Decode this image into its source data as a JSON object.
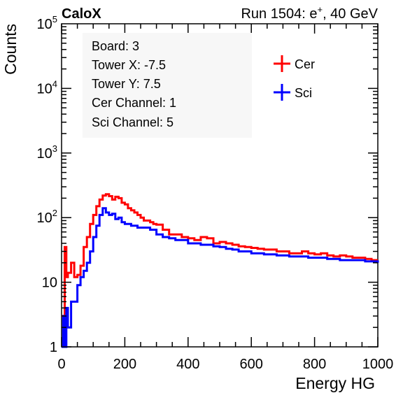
{
  "header": {
    "experiment": "CaloX",
    "run_label": "Run 1504: e",
    "run_superscript": "+",
    "run_energy": ", 40 GeV"
  },
  "info_box": {
    "lines": [
      "Board: 3",
      "Tower X: -7.5",
      "Tower Y: 7.5",
      "Cer Channel: 1",
      "Sci Channel: 5"
    ]
  },
  "chart_data": {
    "type": "line",
    "xlabel": "Energy HG",
    "ylabel": "Counts",
    "xlim": [
      0,
      1000
    ],
    "ylim": [
      1,
      100000
    ],
    "log_y": true,
    "grid": false,
    "legend_position": "top-right",
    "x_ticks": [
      {
        "v": 0,
        "label": "0"
      },
      {
        "v": 200,
        "label": "200"
      },
      {
        "v": 400,
        "label": "400"
      },
      {
        "v": 600,
        "label": "600"
      },
      {
        "v": 800,
        "label": "800"
      },
      {
        "v": 1000,
        "label": "1000"
      }
    ],
    "y_ticks": [
      {
        "v": 1,
        "base": "1",
        "exp": ""
      },
      {
        "v": 10,
        "base": "10",
        "exp": ""
      },
      {
        "v": 100,
        "base": "10",
        "exp": "2"
      },
      {
        "v": 1000,
        "base": "10",
        "exp": "3"
      },
      {
        "v": 10000,
        "base": "10",
        "exp": "4"
      },
      {
        "v": 100000,
        "base": "10",
        "exp": "5"
      }
    ],
    "series": [
      {
        "name": "Cer",
        "color": "#ff0000",
        "points": [
          [
            0,
            3
          ],
          [
            10,
            35
          ],
          [
            15,
            12
          ],
          [
            20,
            14
          ],
          [
            30,
            20
          ],
          [
            40,
            12
          ],
          [
            50,
            13
          ],
          [
            60,
            18
          ],
          [
            70,
            35
          ],
          [
            80,
            50
          ],
          [
            90,
            80
          ],
          [
            100,
            110
          ],
          [
            110,
            150
          ],
          [
            120,
            190
          ],
          [
            130,
            220
          ],
          [
            140,
            230
          ],
          [
            150,
            215
          ],
          [
            160,
            190
          ],
          [
            170,
            210
          ],
          [
            180,
            200
          ],
          [
            190,
            170
          ],
          [
            200,
            160
          ],
          [
            210,
            140
          ],
          [
            220,
            130
          ],
          [
            230,
            120
          ],
          [
            240,
            110
          ],
          [
            250,
            100
          ],
          [
            260,
            90
          ],
          [
            270,
            90
          ],
          [
            280,
            85
          ],
          [
            290,
            80
          ],
          [
            300,
            78
          ],
          [
            320,
            65
          ],
          [
            340,
            55
          ],
          [
            360,
            55
          ],
          [
            380,
            50
          ],
          [
            400,
            48
          ],
          [
            420,
            45
          ],
          [
            440,
            50
          ],
          [
            460,
            48
          ],
          [
            480,
            40
          ],
          [
            500,
            42
          ],
          [
            520,
            40
          ],
          [
            540,
            38
          ],
          [
            560,
            36
          ],
          [
            580,
            35
          ],
          [
            600,
            34
          ],
          [
            620,
            33
          ],
          [
            640,
            32
          ],
          [
            660,
            32
          ],
          [
            680,
            30
          ],
          [
            700,
            30
          ],
          [
            720,
            28
          ],
          [
            740,
            28
          ],
          [
            760,
            30
          ],
          [
            780,
            28
          ],
          [
            800,
            27
          ],
          [
            820,
            28
          ],
          [
            840,
            26
          ],
          [
            860,
            25
          ],
          [
            880,
            26
          ],
          [
            900,
            25
          ],
          [
            920,
            24
          ],
          [
            940,
            24
          ],
          [
            960,
            23
          ],
          [
            980,
            22
          ],
          [
            1000,
            22
          ]
        ]
      },
      {
        "name": "Sci",
        "color": "#0000ff",
        "points": [
          [
            0,
            1
          ],
          [
            5,
            3
          ],
          [
            10,
            1
          ],
          [
            15,
            4
          ],
          [
            20,
            2
          ],
          [
            30,
            5
          ],
          [
            40,
            5
          ],
          [
            50,
            9
          ],
          [
            60,
            12
          ],
          [
            70,
            15
          ],
          [
            80,
            20
          ],
          [
            90,
            30
          ],
          [
            100,
            50
          ],
          [
            110,
            75
          ],
          [
            120,
            110
          ],
          [
            130,
            140
          ],
          [
            140,
            120
          ],
          [
            150,
            110
          ],
          [
            160,
            115
          ],
          [
            170,
            95
          ],
          [
            180,
            100
          ],
          [
            190,
            85
          ],
          [
            200,
            80
          ],
          [
            220,
            75
          ],
          [
            240,
            70
          ],
          [
            260,
            70
          ],
          [
            280,
            65
          ],
          [
            300,
            55
          ],
          [
            320,
            50
          ],
          [
            340,
            48
          ],
          [
            360,
            45
          ],
          [
            380,
            45
          ],
          [
            400,
            40
          ],
          [
            420,
            40
          ],
          [
            440,
            38
          ],
          [
            460,
            38
          ],
          [
            480,
            36
          ],
          [
            500,
            35
          ],
          [
            520,
            33
          ],
          [
            540,
            32
          ],
          [
            560,
            30
          ],
          [
            580,
            30
          ],
          [
            600,
            28
          ],
          [
            620,
            28
          ],
          [
            640,
            27
          ],
          [
            660,
            27
          ],
          [
            680,
            26
          ],
          [
            700,
            26
          ],
          [
            720,
            25
          ],
          [
            740,
            25
          ],
          [
            760,
            25
          ],
          [
            780,
            24
          ],
          [
            800,
            24
          ],
          [
            820,
            24
          ],
          [
            840,
            23
          ],
          [
            860,
            23
          ],
          [
            880,
            22
          ],
          [
            900,
            22
          ],
          [
            920,
            22
          ],
          [
            940,
            22
          ],
          [
            960,
            21
          ],
          [
            980,
            21
          ],
          [
            1000,
            20
          ]
        ]
      }
    ]
  }
}
